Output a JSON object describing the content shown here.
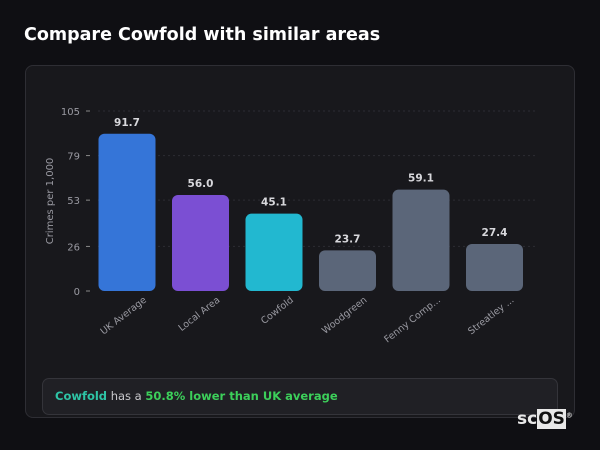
{
  "title": "Compare Cowfold with similar areas",
  "chart_data": {
    "type": "bar",
    "categories": [
      "UK Average",
      "Local Area",
      "Cowfold",
      "Woodgreen",
      "Fenny Comp...",
      "Streatley ..."
    ],
    "values": [
      91.7,
      56.0,
      45.1,
      23.7,
      59.1,
      27.4
    ],
    "value_labels": [
      "91.7",
      "56.0",
      "45.1",
      "23.7",
      "59.1",
      "27.4"
    ],
    "colors": [
      "#3575d8",
      "#7b4fd3",
      "#22b8d0",
      "#5b6679",
      "#5b6679",
      "#5b6679"
    ],
    "ylabel": "Crimes per 1,000",
    "xlabel": "",
    "ylim": [
      0,
      105
    ],
    "yticks": [
      0,
      26,
      53,
      79,
      105
    ],
    "grid": true
  },
  "footer": {
    "area": "Cowfold",
    "middle": " has a ",
    "highlight": "50.8% lower than UK average"
  },
  "logo": {
    "part1": "sc",
    "part2": "OS",
    "mark": "®"
  }
}
